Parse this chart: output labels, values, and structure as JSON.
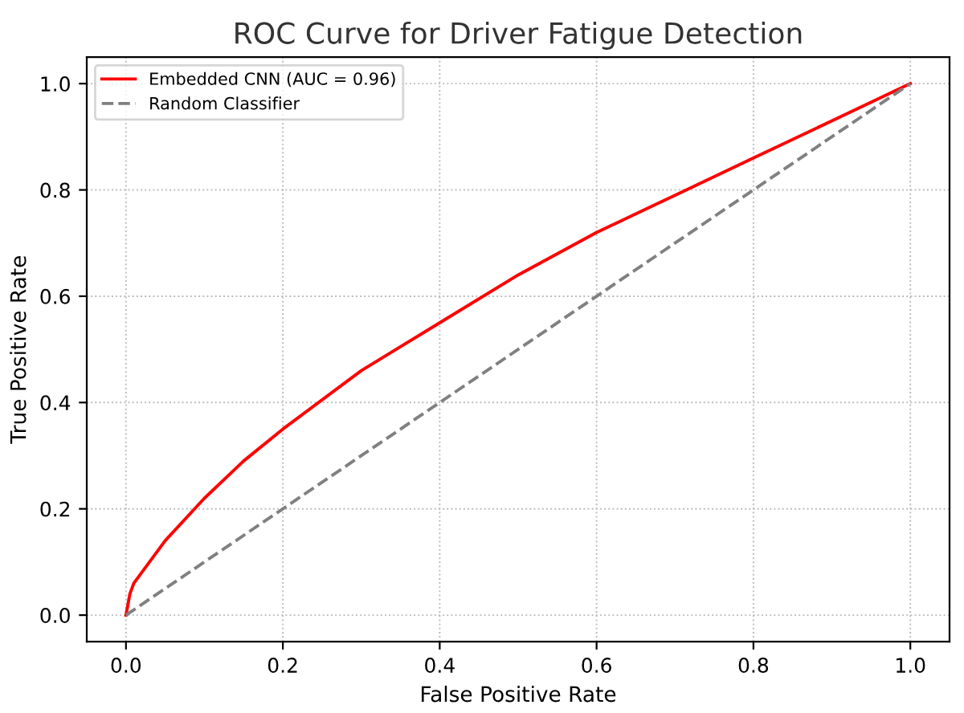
{
  "chart_data": {
    "type": "line",
    "title": "ROC Curve for Driver Fatigue Detection",
    "xlabel": "False Positive Rate",
    "ylabel": "True Positive Rate",
    "series": [
      {
        "name": "Embedded CNN (AUC = 0.96)",
        "color": "#ff0000",
        "line_style": "solid",
        "x": [
          0,
          0.005,
          0.01,
          0.02,
          0.05,
          0.1,
          0.15,
          0.2,
          0.3,
          0.4,
          0.5,
          0.6,
          0.7,
          0.8,
          0.9,
          1
        ],
        "values": [
          0,
          0.04,
          0.06,
          0.08,
          0.14,
          0.22,
          0.29,
          0.35,
          0.46,
          0.55,
          0.64,
          0.72,
          0.79,
          0.86,
          0.93,
          1
        ]
      },
      {
        "name": "Random Classifier",
        "color": "#808080",
        "line_style": "dashed",
        "x": [
          0,
          1
        ],
        "values": [
          0,
          1
        ]
      }
    ],
    "xlim": [
      -0.05,
      1.05
    ],
    "ylim": [
      -0.05,
      1.05
    ],
    "xticks": [
      {
        "value": 0,
        "label": "0.0"
      },
      0.2,
      0.4,
      0.6,
      0.8,
      {
        "value": 1,
        "label": "1.0"
      }
    ],
    "yticks": [
      {
        "value": 0,
        "label": "0.0"
      },
      0.2,
      0.4,
      0.6,
      0.8,
      {
        "value": 1,
        "label": "1.0"
      }
    ],
    "grid": true,
    "legend": "top left",
    "marker": "none"
  }
}
